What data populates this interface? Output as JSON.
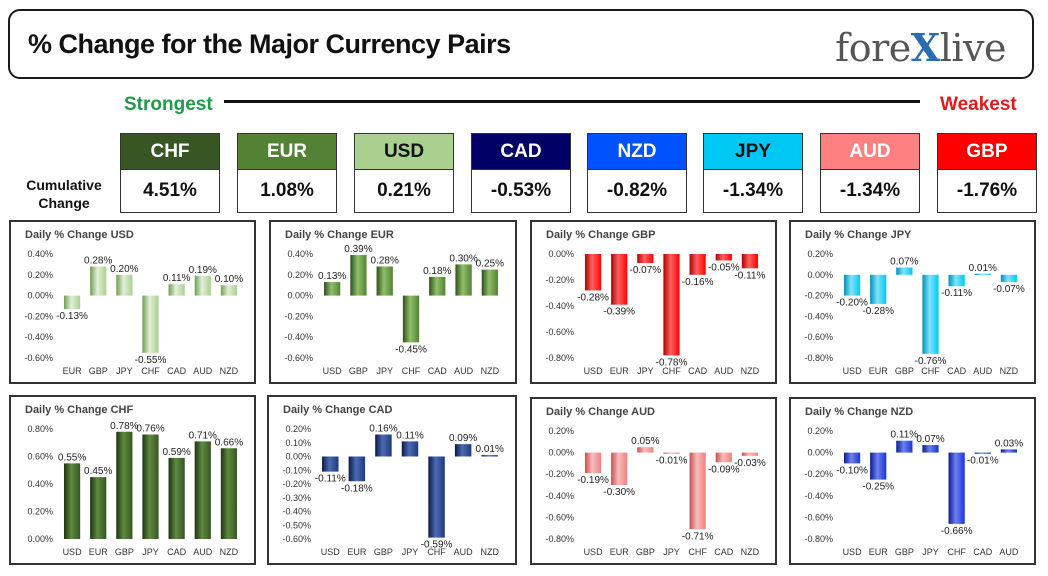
{
  "header": {
    "title": "% Change for the Major Currency Pairs",
    "brand_left": "fore",
    "brand_x": "X",
    "brand_right": "live"
  },
  "ranking": {
    "strongest_label": "Strongest",
    "weakest_label": "Weakest",
    "cumulative_label_line1": "Cumulative",
    "cumulative_label_line2": "Change",
    "currencies": [
      {
        "code": "CHF",
        "value": "4.51%",
        "color": "#375623",
        "text_color": "#ffffff"
      },
      {
        "code": "EUR",
        "value": "1.08%",
        "color": "#548235",
        "text_color": "#ffffff"
      },
      {
        "code": "USD",
        "value": "0.21%",
        "color": "#a9d08e",
        "text_color": "#111111"
      },
      {
        "code": "CAD",
        "value": "-0.53%",
        "color": "#000066",
        "text_color": "#ffffff"
      },
      {
        "code": "NZD",
        "value": "-0.82%",
        "color": "#0052ff",
        "text_color": "#ffffff"
      },
      {
        "code": "JPY",
        "value": "-1.34%",
        "color": "#00c8f5",
        "text_color": "#111111"
      },
      {
        "code": "AUD",
        "value": "-1.34%",
        "color": "#ff8080",
        "text_color": "#ffffff"
      },
      {
        "code": "GBP",
        "value": "-1.76%",
        "color": "#ff0000",
        "text_color": "#ffffff"
      }
    ]
  },
  "chart_data": [
    {
      "type": "bar",
      "title": "Daily % Change USD",
      "categories": [
        "EUR",
        "GBP",
        "JPY",
        "CHF",
        "CAD",
        "AUD",
        "NZD"
      ],
      "values": [
        -0.13,
        0.28,
        0.2,
        -0.55,
        0.11,
        0.19,
        0.1
      ],
      "labels": [
        "-0.13%",
        "0.28%",
        "0.20%",
        "-0.55%",
        "0.11%",
        "0.19%",
        "0.10%"
      ],
      "ylim": [
        -0.6,
        0.4
      ],
      "ticks": [
        0.4,
        0.2,
        0,
        -0.2,
        -0.4,
        -0.6
      ],
      "tick_labels": [
        "0.40%",
        "0.20%",
        "0.00%",
        "-0.20%",
        "-0.40%",
        "-0.60%"
      ],
      "color": "#a9d08e",
      "color_light": "#e2efd9",
      "color_dark": "#6f9e50"
    },
    {
      "type": "bar",
      "title": "Daily % Change EUR",
      "categories": [
        "USD",
        "GBP",
        "JPY",
        "CHF",
        "CAD",
        "AUD",
        "NZD"
      ],
      "values": [
        0.13,
        0.39,
        0.28,
        -0.45,
        0.18,
        0.3,
        0.25
      ],
      "labels": [
        "0.13%",
        "0.39%",
        "0.28%",
        "-0.45%",
        "0.18%",
        "0.30%",
        "0.25%"
      ],
      "ylim": [
        -0.6,
        0.4
      ],
      "ticks": [
        0.4,
        0.2,
        0,
        -0.2,
        -0.4,
        -0.6
      ],
      "tick_labels": [
        "0.40%",
        "0.20%",
        "0.00%",
        "-0.20%",
        "-0.40%",
        "-0.60%"
      ],
      "color": "#548235",
      "color_light": "#8fbf6a",
      "color_dark": "#2f4f1c"
    },
    {
      "type": "bar",
      "title": "Daily % Change GBP",
      "categories": [
        "USD",
        "EUR",
        "JPY",
        "CHF",
        "CAD",
        "AUD",
        "NZD"
      ],
      "values": [
        -0.28,
        -0.39,
        -0.07,
        -0.78,
        -0.16,
        -0.05,
        -0.11
      ],
      "labels": [
        "-0.28%",
        "-0.39%",
        "-0.07%",
        "-0.78%",
        "-0.16%",
        "-0.05%",
        "-0.11%"
      ],
      "ylim": [
        -0.8,
        0.0
      ],
      "ticks": [
        0,
        -0.2,
        -0.4,
        -0.6,
        -0.8
      ],
      "tick_labels": [
        "0.00%",
        "-0.20%",
        "-0.40%",
        "-0.60%",
        "-0.80%"
      ],
      "color": "#ff0000",
      "color_light": "#ff6060",
      "color_dark": "#b00000"
    },
    {
      "type": "bar",
      "title": "Daily % Change JPY",
      "categories": [
        "USD",
        "EUR",
        "GBP",
        "CHF",
        "CAD",
        "AUD",
        "NZD"
      ],
      "values": [
        -0.2,
        -0.28,
        0.07,
        -0.76,
        -0.11,
        0.01,
        -0.07
      ],
      "labels": [
        "-0.20%",
        "-0.28%",
        "0.07%",
        "-0.76%",
        "-0.11%",
        "0.01%",
        "-0.07%"
      ],
      "ylim": [
        -0.8,
        0.2
      ],
      "ticks": [
        0.2,
        0,
        -0.2,
        -0.4,
        -0.6,
        -0.8
      ],
      "tick_labels": [
        "0.20%",
        "0.00%",
        "-0.20%",
        "-0.40%",
        "-0.60%",
        "-0.80%"
      ],
      "color": "#00c8f5",
      "color_light": "#7fe4fb",
      "color_dark": "#0090b8"
    },
    {
      "type": "bar",
      "title": "Daily % Change CHF",
      "categories": [
        "USD",
        "EUR",
        "GBP",
        "JPY",
        "CAD",
        "AUD",
        "NZD"
      ],
      "values": [
        0.55,
        0.45,
        0.78,
        0.76,
        0.59,
        0.71,
        0.66
      ],
      "labels": [
        "0.55%",
        "0.45%",
        "0.78%",
        "0.76%",
        "0.59%",
        "0.71%",
        "0.66%"
      ],
      "ylim": [
        0,
        0.8
      ],
      "ticks": [
        0.8,
        0.6,
        0.4,
        0.2,
        0
      ],
      "tick_labels": [
        "0.80%",
        "0.60%",
        "0.40%",
        "0.20%",
        "0.00%"
      ],
      "color": "#375623",
      "color_light": "#5e8a3e",
      "color_dark": "#1f3313"
    },
    {
      "type": "bar",
      "title": "Daily % Change CAD",
      "categories": [
        "USD",
        "EUR",
        "GBP",
        "JPY",
        "CHF",
        "AUD",
        "NZD"
      ],
      "values": [
        -0.11,
        -0.18,
        0.16,
        0.11,
        -0.59,
        0.09,
        0.01
      ],
      "labels": [
        "-0.11%",
        "-0.18%",
        "0.16%",
        "0.11%",
        "-0.59%",
        "0.09%",
        "0.01%"
      ],
      "ylim": [
        -0.6,
        0.2
      ],
      "ticks": [
        0.2,
        0.1,
        0,
        -0.1,
        -0.2,
        -0.3,
        -0.4,
        -0.5,
        -0.6
      ],
      "tick_labels": [
        "0.20%",
        "0.10%",
        "0.00%",
        "-0.10%",
        "-0.20%",
        "-0.30%",
        "-0.40%",
        "-0.50%",
        "-0.60%"
      ],
      "color": "#1f3a7a",
      "color_light": "#4b6bb5",
      "color_dark": "#0b1a45"
    },
    {
      "type": "bar",
      "title": "Daily % Change AUD",
      "categories": [
        "USD",
        "EUR",
        "GBP",
        "JPY",
        "CHF",
        "CAD",
        "NZD"
      ],
      "values": [
        -0.19,
        -0.3,
        0.05,
        -0.01,
        -0.71,
        -0.09,
        -0.03
      ],
      "labels": [
        "-0.19%",
        "-0.30%",
        "0.05%",
        "-0.01%",
        "-0.71%",
        "-0.09%",
        "-0.03%"
      ],
      "ylim": [
        -0.8,
        0.2
      ],
      "ticks": [
        0.2,
        0,
        -0.2,
        -0.4,
        -0.6,
        -0.8
      ],
      "tick_labels": [
        "0.20%",
        "0.00%",
        "-0.20%",
        "-0.40%",
        "-0.60%",
        "-0.80%"
      ],
      "color": "#f08080",
      "color_light": "#f8bcbc",
      "color_dark": "#c85050"
    },
    {
      "type": "bar",
      "title": "Daily % Change NZD",
      "categories": [
        "USD",
        "EUR",
        "GBP",
        "JPY",
        "CHF",
        "CAD",
        "AUD"
      ],
      "values": [
        -0.1,
        -0.25,
        0.11,
        0.07,
        -0.66,
        -0.01,
        0.03
      ],
      "labels": [
        "-0.10%",
        "-0.25%",
        "0.11%",
        "0.07%",
        "-0.66%",
        "-0.01%",
        "0.03%"
      ],
      "ylim": [
        -0.8,
        0.2
      ],
      "ticks": [
        0.2,
        0,
        -0.2,
        -0.4,
        -0.6,
        -0.8
      ],
      "tick_labels": [
        "0.20%",
        "0.00%",
        "-0.20%",
        "-0.40%",
        "-0.60%",
        "-0.80%"
      ],
      "color": "#1a35d6",
      "color_light": "#6c80f0",
      "color_dark": "#0a1c90"
    }
  ]
}
